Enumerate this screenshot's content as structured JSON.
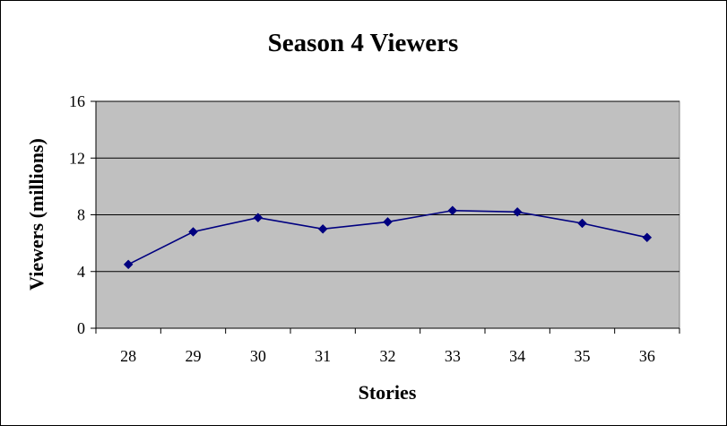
{
  "chart_data": {
    "type": "line",
    "title": "Season 4 Viewers",
    "xlabel": "Stories",
    "ylabel": "Viewers (millions)",
    "categories": [
      "28",
      "29",
      "30",
      "31",
      "32",
      "33",
      "34",
      "35",
      "36"
    ],
    "series": [
      {
        "values": [
          4.5,
          6.8,
          7.8,
          7.0,
          7.5,
          8.3,
          8.2,
          7.4,
          6.4
        ]
      }
    ],
    "ylim": [
      0,
      16
    ],
    "yticks": [
      "0",
      "4",
      "8",
      "12",
      "16"
    ],
    "grid": "horizontal major gridlines",
    "legend": "none",
    "colors": {
      "plot_background": "#c0c0c0",
      "line": "#000080",
      "marker": "#000080",
      "gridline": "#000000"
    }
  }
}
